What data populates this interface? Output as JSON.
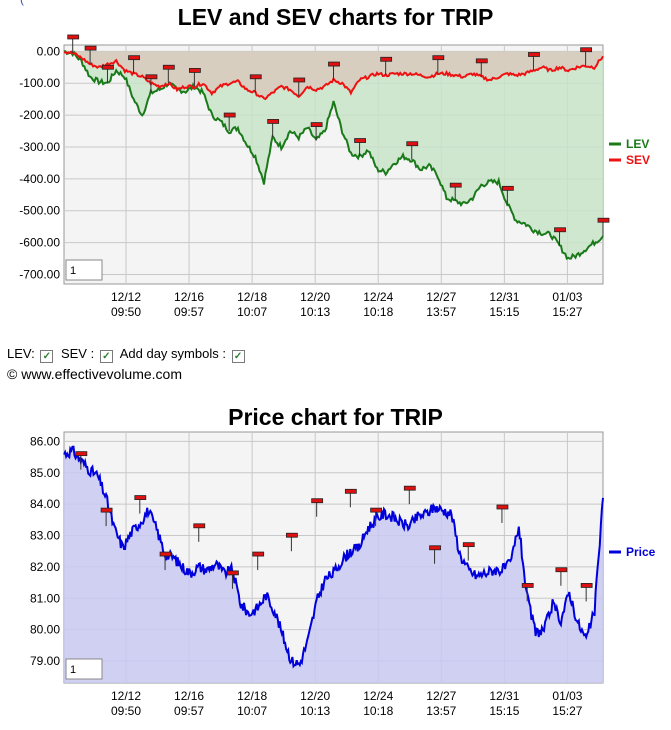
{
  "page": {
    "top_cut_text": "(",
    "copyright": "© www.effectivevolume.com",
    "bottom_cut_text": "",
    "checkboxes": [
      {
        "label": "LEV:",
        "checked": true
      },
      {
        "label": "SEV :",
        "checked": true
      },
      {
        "label": "Add day symbols :",
        "checked": true
      }
    ]
  },
  "chart_data": [
    {
      "type": "line",
      "title": "LEV and SEV charts for TRIP",
      "zoom_value": "1",
      "y_ticks": [
        0,
        -100,
        -200,
        -300,
        -400,
        -500,
        -600,
        -700
      ],
      "y_tick_labels": [
        "0.00",
        "-100.00",
        "-200.00",
        "-300.00",
        "-400.00",
        "-500.00",
        "-600.00",
        "-700.00"
      ],
      "ylim": [
        -730,
        20
      ],
      "x_ticks": [
        {
          "date": "12/12",
          "time": "09:50"
        },
        {
          "date": "12/16",
          "time": "09:57"
        },
        {
          "date": "12/18",
          "time": "10:07"
        },
        {
          "date": "12/20",
          "time": "10:13"
        },
        {
          "date": "12/24",
          "time": "10:18"
        },
        {
          "date": "12/27",
          "time": "13:57"
        },
        {
          "date": "12/31",
          "time": "15:15"
        },
        {
          "date": "01/03",
          "time": "15:27"
        }
      ],
      "legend_position": "right",
      "series": [
        {
          "name": "LEV",
          "color": "#1a7a1a",
          "fill": "#c8e3c8",
          "values": [
            0,
            -5,
            -30,
            -80,
            -95,
            -100,
            -60,
            -80,
            -150,
            -200,
            -130,
            -120,
            -100,
            -120,
            -125,
            -110,
            -130,
            -200,
            -220,
            -250,
            -240,
            -290,
            -330,
            -410,
            -270,
            -300,
            -250,
            -270,
            -240,
            -280,
            -250,
            -160,
            -250,
            -320,
            -330,
            -310,
            -370,
            -380,
            -350,
            -330,
            -340,
            -370,
            -360,
            -390,
            -460,
            -470,
            -480,
            -460,
            -420,
            -410,
            -410,
            -480,
            -530,
            -540,
            -560,
            -570,
            -575,
            -610,
            -650,
            -640,
            -620,
            -600,
            -580
          ]
        },
        {
          "name": "SEV",
          "color": "#ee1111",
          "fill": "#d9c9bd",
          "values": [
            0,
            -5,
            -20,
            -40,
            -50,
            -40,
            -30,
            -60,
            -70,
            -80,
            -100,
            -110,
            -100,
            -120,
            -110,
            -110,
            -100,
            -130,
            -110,
            -100,
            -95,
            -120,
            -130,
            -150,
            -130,
            -110,
            -120,
            -140,
            -110,
            -120,
            -110,
            -90,
            -100,
            -130,
            -90,
            -80,
            -70,
            -75,
            -70,
            -70,
            -70,
            -75,
            -80,
            -70,
            -70,
            -75,
            -80,
            -70,
            -80,
            -90,
            -80,
            -70,
            -75,
            -70,
            -60,
            -50,
            -60,
            -50,
            -60,
            -50,
            -45,
            -50,
            -15
          ]
        }
      ],
      "day_markers": [
        {
          "series": "SEV",
          "index": 1
        },
        {
          "series": "SEV",
          "index": 3
        },
        {
          "series": "LEV",
          "index": 5
        },
        {
          "series": "SEV",
          "index": 8
        },
        {
          "series": "LEV",
          "index": 10
        },
        {
          "series": "SEV",
          "index": 12
        },
        {
          "series": "LEV",
          "index": 15
        },
        {
          "series": "LEV",
          "index": 19
        },
        {
          "series": "SEV",
          "index": 22
        },
        {
          "series": "LEV",
          "index": 24
        },
        {
          "series": "SEV",
          "index": 27
        },
        {
          "series": "LEV",
          "index": 29
        },
        {
          "series": "SEV",
          "index": 31
        },
        {
          "series": "LEV",
          "index": 34
        },
        {
          "series": "SEV",
          "index": 37
        },
        {
          "series": "LEV",
          "index": 40
        },
        {
          "series": "SEV",
          "index": 43
        },
        {
          "series": "LEV",
          "index": 45
        },
        {
          "series": "SEV",
          "index": 48
        },
        {
          "series": "LEV",
          "index": 51
        },
        {
          "series": "SEV",
          "index": 54
        },
        {
          "series": "LEV",
          "index": 57
        },
        {
          "series": "SEV",
          "index": 60
        },
        {
          "series": "LEV",
          "index": 62
        }
      ]
    },
    {
      "type": "area",
      "title": "Price chart for TRIP",
      "zoom_value": "1",
      "y_ticks": [
        86,
        85,
        84,
        83,
        82,
        81,
        80,
        79
      ],
      "y_tick_labels": [
        "86.00",
        "85.00",
        "84.00",
        "83.00",
        "82.00",
        "81.00",
        "80.00",
        "79.00"
      ],
      "ylim": [
        78.3,
        86.3
      ],
      "x_ticks": [
        {
          "date": "12/12",
          "time": "09:50"
        },
        {
          "date": "12/16",
          "time": "09:57"
        },
        {
          "date": "12/18",
          "time": "10:07"
        },
        {
          "date": "12/20",
          "time": "10:13"
        },
        {
          "date": "12/24",
          "time": "10:18"
        },
        {
          "date": "12/27",
          "time": "13:57"
        },
        {
          "date": "12/31",
          "time": "15:15"
        },
        {
          "date": "01/03",
          "time": "15:27"
        }
      ],
      "legend_position": "right",
      "series": [
        {
          "name": "Price",
          "color": "#0000dd",
          "fill": "#c9c9f2",
          "values": [
            85.6,
            85.7,
            85.4,
            85.1,
            84.9,
            84.2,
            83.2,
            82.6,
            83.1,
            83.4,
            83.8,
            83.2,
            82.4,
            82.3,
            82.0,
            81.8,
            82.0,
            81.9,
            82.1,
            81.8,
            81.9,
            80.8,
            80.5,
            80.7,
            81.1,
            80.6,
            79.8,
            79.0,
            78.9,
            79.7,
            80.9,
            81.6,
            81.8,
            82.2,
            82.5,
            82.6,
            83.2,
            83.5,
            83.7,
            83.6,
            83.4,
            83.3,
            83.6,
            83.7,
            83.9,
            83.8,
            83.7,
            82.4,
            81.9,
            81.7,
            81.8,
            81.9,
            81.9,
            82.1,
            83.3,
            81.0,
            79.9,
            80.0,
            80.8,
            80.3,
            81.2,
            80.2,
            79.7,
            80.6,
            84.2
          ]
        }
      ],
      "day_markers": [
        85.1,
        83.3,
        83.7,
        81.9,
        82.8,
        81.3,
        81.9,
        82.5,
        83.6,
        83.9,
        83.3,
        84.0,
        82.1,
        82.2,
        83.4,
        80.9,
        81.4,
        80.9
      ]
    }
  ]
}
